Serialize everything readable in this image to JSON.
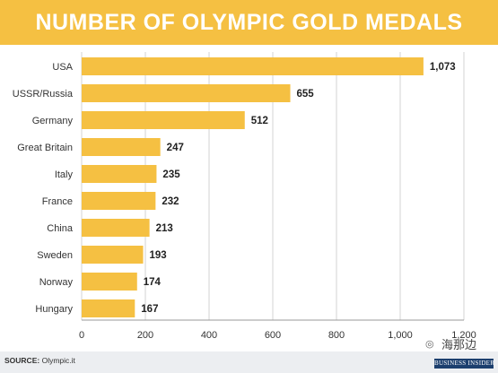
{
  "title": "NUMBER OF OLYMPIC GOLD MEDALS",
  "colors": {
    "bar": "#f5c042",
    "title_bg": "#f5c042",
    "footer_bg": "#eceef1",
    "logo_bg": "#1c3f6e"
  },
  "chart_data": {
    "type": "bar",
    "orientation": "horizontal",
    "title": "NUMBER OF OLYMPIC GOLD MEDALS",
    "categories": [
      "USA",
      "USSR/Russia",
      "Germany",
      "Great Britain",
      "Italy",
      "France",
      "China",
      "Sweden",
      "Norway",
      "Hungary"
    ],
    "values": [
      1073,
      655,
      512,
      247,
      235,
      232,
      213,
      193,
      174,
      167
    ],
    "value_labels": [
      "1,073",
      "655",
      "512",
      "247",
      "235",
      "232",
      "213",
      "193",
      "174",
      "167"
    ],
    "xlim": [
      0,
      1200
    ],
    "xticks": [
      0,
      200,
      400,
      600,
      800,
      1000,
      1200
    ],
    "xtick_labels": [
      "0",
      "200",
      "400",
      "600",
      "800",
      "1,000",
      "1,200"
    ],
    "grid": "vertical",
    "xlabel": "",
    "ylabel": ""
  },
  "footer": {
    "source_label": "SOURCE:",
    "source_text": "Olympic.it"
  },
  "watermark": {
    "text": "海那边",
    "icon": "wechat-icon"
  },
  "logo": {
    "text": "BUSINESS INSIDER"
  }
}
